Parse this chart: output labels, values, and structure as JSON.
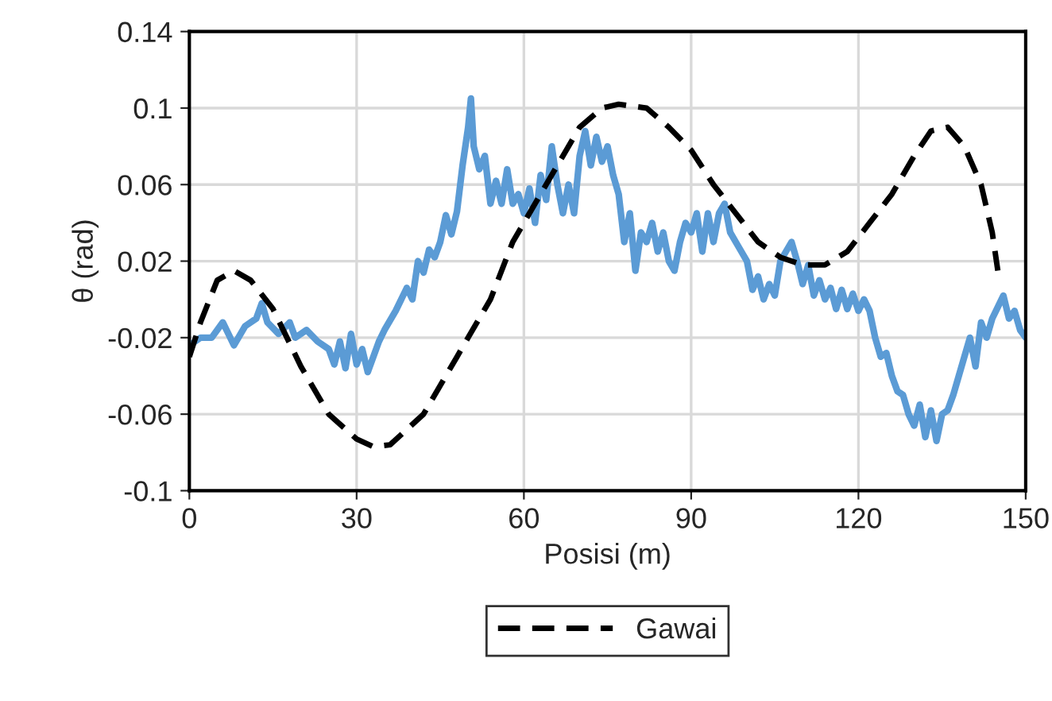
{
  "chart_data": {
    "type": "line",
    "xlabel": "Posisi (m)",
    "ylabel": "θ (rad)",
    "xlim": [
      0,
      150
    ],
    "xticks": [
      0,
      30,
      60,
      90,
      120,
      150
    ],
    "ylim": [
      -0.1,
      0.14
    ],
    "yticks": [
      -0.1,
      -0.06,
      -0.02,
      0.02,
      0.06,
      0.1,
      0.14
    ],
    "grid": true,
    "legend": "bottom",
    "series": [
      {
        "color": "#5b9bd5",
        "line_style": "solid",
        "x": [
          0,
          2,
          4,
          6,
          7,
          8,
          10,
          12,
          13,
          14,
          16,
          18,
          19,
          21,
          23,
          25,
          26,
          27,
          28,
          29,
          30,
          31,
          32,
          34,
          35,
          37,
          39,
          40,
          41,
          42,
          43,
          44,
          45,
          46,
          47,
          48,
          49,
          50,
          50.5,
          51,
          52,
          53,
          54,
          55,
          56,
          57,
          58,
          59,
          60,
          61,
          62,
          63,
          64,
          65,
          66,
          67,
          68,
          69,
          70,
          71,
          72,
          73,
          74,
          75,
          76,
          77,
          78,
          79,
          80,
          81,
          82,
          83,
          84,
          85,
          86,
          87,
          88,
          89,
          90,
          91,
          92,
          93,
          94,
          95,
          96,
          97,
          98,
          99,
          100,
          101,
          102,
          103,
          104,
          105,
          106,
          107,
          108,
          109,
          110,
          111,
          112,
          113,
          114,
          115,
          116,
          117,
          118,
          119,
          120,
          121,
          122,
          123,
          124,
          125,
          126,
          127,
          128,
          129,
          130,
          131,
          132,
          133,
          134,
          135,
          136,
          137,
          138,
          139,
          140,
          141,
          142,
          143,
          144,
          145,
          146,
          147,
          148,
          149,
          150
        ],
        "values": [
          -0.024,
          -0.02,
          -0.02,
          -0.012,
          -0.018,
          -0.024,
          -0.014,
          -0.01,
          -0.002,
          -0.012,
          -0.018,
          -0.012,
          -0.02,
          -0.016,
          -0.022,
          -0.026,
          -0.034,
          -0.022,
          -0.036,
          -0.018,
          -0.034,
          -0.026,
          -0.038,
          -0.022,
          -0.016,
          -0.006,
          0.006,
          0.0,
          0.02,
          0.014,
          0.026,
          0.022,
          0.03,
          0.044,
          0.034,
          0.046,
          0.07,
          0.09,
          0.105,
          0.08,
          0.068,
          0.075,
          0.05,
          0.062,
          0.05,
          0.068,
          0.05,
          0.055,
          0.045,
          0.058,
          0.04,
          0.065,
          0.052,
          0.08,
          0.06,
          0.045,
          0.06,
          0.045,
          0.075,
          0.088,
          0.07,
          0.085,
          0.072,
          0.08,
          0.065,
          0.055,
          0.03,
          0.045,
          0.015,
          0.035,
          0.03,
          0.04,
          0.025,
          0.035,
          0.02,
          0.015,
          0.03,
          0.04,
          0.035,
          0.045,
          0.025,
          0.045,
          0.03,
          0.045,
          0.05,
          0.035,
          0.03,
          0.025,
          0.02,
          0.005,
          0.012,
          0.0,
          0.008,
          0.002,
          0.02,
          0.025,
          0.03,
          0.02,
          0.008,
          0.018,
          0.002,
          0.01,
          0.0,
          0.006,
          -0.005,
          0.005,
          -0.005,
          0.003,
          -0.006,
          0.0,
          -0.006,
          -0.02,
          -0.03,
          -0.028,
          -0.04,
          -0.048,
          -0.05,
          -0.06,
          -0.066,
          -0.055,
          -0.072,
          -0.058,
          -0.074,
          -0.06,
          -0.058,
          -0.05,
          -0.04,
          -0.03,
          -0.02,
          -0.035,
          -0.012,
          -0.02,
          -0.01,
          -0.004,
          0.002,
          -0.01,
          -0.006,
          -0.016,
          -0.02
        ]
      },
      {
        "name": "Gawai",
        "color": "#000000",
        "line_style": "dashed",
        "x": [
          0,
          2,
          5,
          8,
          11,
          15,
          20,
          25,
          30,
          33,
          36,
          42,
          48,
          54,
          58,
          62,
          66,
          70,
          74,
          77,
          82,
          86,
          90,
          94,
          98,
          102,
          106,
          110,
          114,
          118,
          122,
          126,
          130,
          133,
          136,
          139,
          142,
          144,
          145
        ],
        "values": [
          -0.03,
          -0.012,
          0.01,
          0.015,
          0.01,
          -0.005,
          -0.035,
          -0.06,
          -0.073,
          -0.077,
          -0.076,
          -0.06,
          -0.03,
          0.0,
          0.03,
          0.05,
          0.07,
          0.09,
          0.1,
          0.102,
          0.1,
          0.09,
          0.078,
          0.06,
          0.045,
          0.03,
          0.022,
          0.018,
          0.018,
          0.025,
          0.04,
          0.055,
          0.075,
          0.088,
          0.09,
          0.08,
          0.06,
          0.035,
          0.015
        ]
      }
    ]
  }
}
